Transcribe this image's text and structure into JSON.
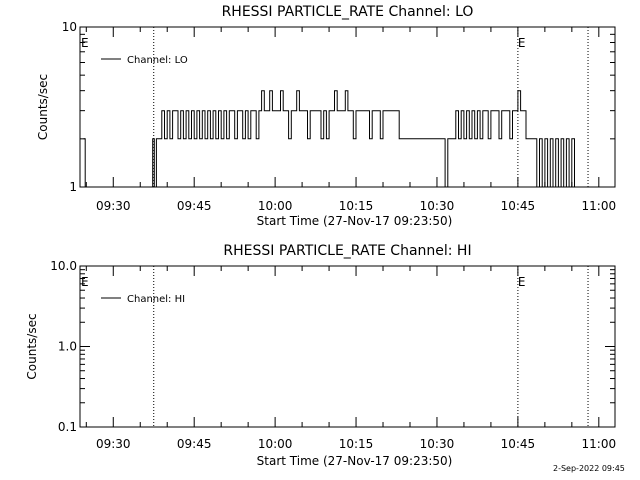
{
  "chart_data": [
    {
      "type": "line",
      "title": "RHESSI PARTICLE_RATE Channel: LO",
      "xlabel": "Start Time (27-Nov-17 09:23:50)",
      "ylabel": "Counts/sec",
      "y_scale": "log",
      "ylim": [
        1,
        10
      ],
      "y_ticks": [
        "1",
        "10"
      ],
      "xlim": [
        "09:23:50",
        "11:03:00"
      ],
      "x_ticks": [
        "09:30",
        "09:45",
        "10:00",
        "10:15",
        "10:30",
        "10:45",
        "11:00"
      ],
      "legend": {
        "position": "top-left",
        "entries": [
          "Channel: LO"
        ]
      },
      "markers": [
        {
          "label": "E",
          "time": "09:23:50"
        },
        {
          "label": "E",
          "time": "10:45:00"
        }
      ],
      "vlines_dotted": [
        "09:37:30",
        "10:45:00",
        "10:58:00"
      ],
      "series": [
        {
          "name": "Channel: LO",
          "x": [
            "09:24:30",
            "09:24:48",
            "09:25:06",
            "09:37:00",
            "09:37:18",
            "09:37:36",
            "09:38:00",
            "09:38:30",
            "09:39:00",
            "09:39:30",
            "09:40:00",
            "09:40:30",
            "09:41:00",
            "09:41:30",
            "09:42:00",
            "09:42:30",
            "09:43:00",
            "09:43:30",
            "09:44:00",
            "09:44:30",
            "09:45:00",
            "09:45:30",
            "09:46:00",
            "09:46:30",
            "09:47:00",
            "09:47:30",
            "09:48:00",
            "09:48:30",
            "09:49:00",
            "09:49:30",
            "09:50:00",
            "09:50:30",
            "09:51:00",
            "09:51:30",
            "09:52:00",
            "09:52:30",
            "09:53:00",
            "09:53:30",
            "09:54:00",
            "09:54:30",
            "09:55:00",
            "09:55:30",
            "09:56:00",
            "09:56:30",
            "09:57:00",
            "09:57:30",
            "09:58:00",
            "09:58:30",
            "09:59:00",
            "09:59:30",
            "10:00:00",
            "10:00:30",
            "10:01:00",
            "10:01:30",
            "10:02:00",
            "10:02:30",
            "10:03:00",
            "10:03:30",
            "10:04:00",
            "10:04:30",
            "10:05:00",
            "10:05:30",
            "10:06:00",
            "10:06:30",
            "10:07:00",
            "10:07:30",
            "10:08:00",
            "10:08:30",
            "10:09:00",
            "10:09:30",
            "10:10:00",
            "10:10:30",
            "10:11:00",
            "10:11:30",
            "10:12:00",
            "10:12:30",
            "10:13:00",
            "10:13:30",
            "10:14:00",
            "10:14:30",
            "10:15:00",
            "10:15:30",
            "10:16:00",
            "10:16:30",
            "10:17:00",
            "10:17:30",
            "10:18:00",
            "10:18:30",
            "10:19:00",
            "10:19:30",
            "10:20:00",
            "10:21:00",
            "10:22:00",
            "10:23:00",
            "10:24:00",
            "10:25:00",
            "10:26:00",
            "10:27:00",
            "10:28:00",
            "10:29:00",
            "10:30:00",
            "10:30:30",
            "10:31:00",
            "10:31:30",
            "10:32:00",
            "10:32:30",
            "10:33:00",
            "10:33:30",
            "10:34:00",
            "10:34:30",
            "10:35:00",
            "10:35:30",
            "10:36:00",
            "10:36:30",
            "10:37:00",
            "10:37:30",
            "10:38:00",
            "10:38:30",
            "10:39:00",
            "10:39:30",
            "10:40:00",
            "10:40:30",
            "10:41:00",
            "10:41:30",
            "10:42:00",
            "10:42:30",
            "10:43:00",
            "10:43:30",
            "10:44:00",
            "10:44:30",
            "10:45:00",
            "10:45:30",
            "10:46:00",
            "10:46:30",
            "10:47:00",
            "10:47:30",
            "10:48:00",
            "10:48:30",
            "10:49:00",
            "10:49:30",
            "10:50:00",
            "10:50:30",
            "10:51:00",
            "10:51:30",
            "10:52:00",
            "10:52:30",
            "10:53:00",
            "10:53:30",
            "10:54:00",
            "10:54:30",
            "10:55:00",
            "10:55:30",
            "10:56:00",
            "10:56:30",
            "10:57:00"
          ],
          "values": [
            2,
            1,
            1,
            1,
            2,
            1,
            2,
            2,
            3,
            2,
            3,
            2,
            3,
            3,
            2,
            3,
            2,
            3,
            2,
            3,
            2,
            3,
            2,
            3,
            2,
            3,
            2,
            3,
            2,
            3,
            2,
            3,
            2,
            3,
            3,
            2,
            3,
            3,
            2,
            3,
            2,
            3,
            3,
            2,
            3,
            4,
            3,
            3,
            4,
            3,
            3,
            3,
            4,
            3,
            3,
            2,
            3,
            3,
            4,
            3,
            3,
            3,
            2,
            3,
            3,
            3,
            3,
            2,
            3,
            2,
            3,
            3,
            4,
            3,
            3,
            3,
            4,
            3,
            3,
            2,
            3,
            3,
            3,
            3,
            3,
            2,
            3,
            3,
            3,
            2,
            3,
            3,
            3,
            2,
            2,
            2,
            2,
            2,
            2,
            2,
            2,
            2,
            2,
            1,
            2,
            2,
            2,
            3,
            2,
            3,
            2,
            3,
            2,
            3,
            2,
            3,
            2,
            3,
            3,
            2,
            3,
            3,
            3,
            2,
            3,
            3,
            3,
            2,
            3,
            3,
            4,
            3,
            3,
            2,
            2,
            2,
            2,
            1,
            2,
            1,
            2,
            1,
            2,
            1,
            2,
            1,
            2,
            1,
            2,
            1,
            2,
            1,
            1,
            1,
            1
          ]
        }
      ]
    },
    {
      "type": "line",
      "title": "RHESSI PARTICLE_RATE Channel: HI",
      "xlabel": "Start Time (27-Nov-17 09:23:50)",
      "ylabel": "Counts/sec",
      "y_scale": "log",
      "ylim": [
        0.1,
        10
      ],
      "y_ticks": [
        "0.1",
        "1.0",
        "10.0"
      ],
      "xlim": [
        "09:23:50",
        "11:03:00"
      ],
      "x_ticks": [
        "09:30",
        "09:45",
        "10:00",
        "10:15",
        "10:30",
        "10:45",
        "11:00"
      ],
      "legend": {
        "position": "top-left",
        "entries": [
          "Channel: HI"
        ]
      },
      "markers": [
        {
          "label": "E",
          "time": "09:23:50"
        },
        {
          "label": "E",
          "time": "10:45:00"
        }
      ],
      "vlines_dotted": [
        "09:37:30",
        "10:45:00",
        "10:58:00"
      ],
      "series": [
        {
          "name": "Channel: HI",
          "x": [],
          "values": []
        }
      ]
    }
  ],
  "footer": {
    "timestamp": "2-Sep-2022 09:45"
  }
}
